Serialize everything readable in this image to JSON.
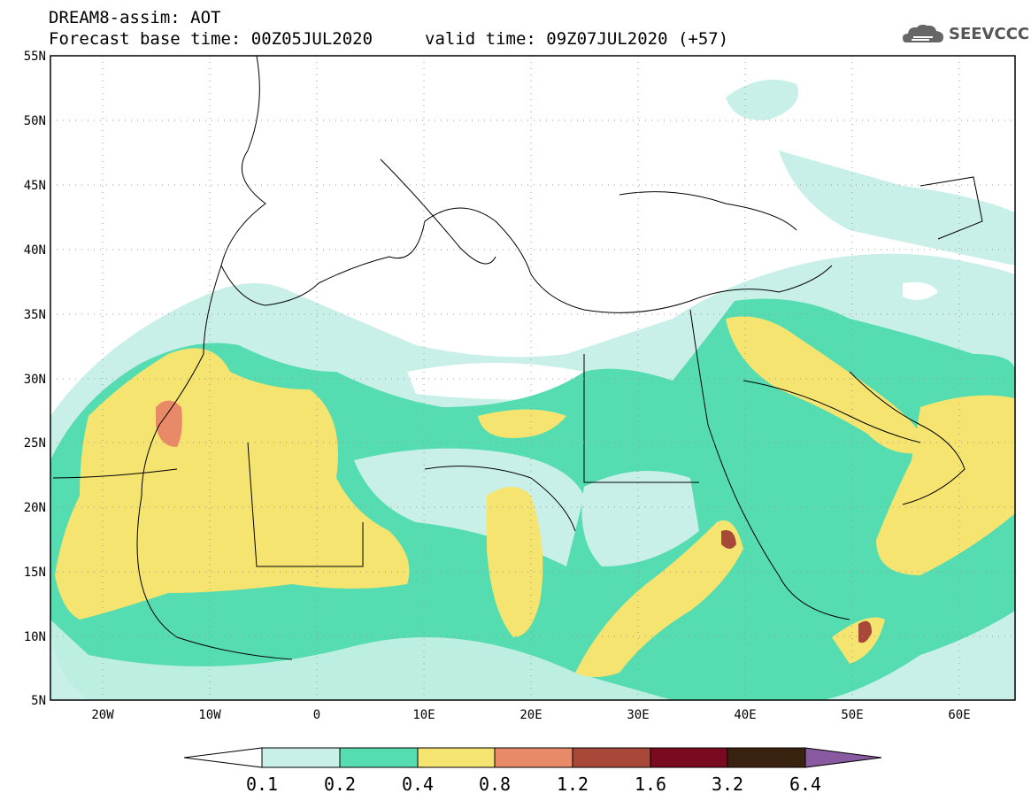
{
  "header": {
    "title": "DREAM8-assim: AOT",
    "base_time": "Forecast base time: 00Z05JUL2020",
    "valid_time": "valid time: 09Z07JUL2020 (+57)"
  },
  "logo": {
    "text": "SEEVCCC",
    "icon": "cloud-icon"
  },
  "map": {
    "lat_labels": [
      "55N",
      "50N",
      "45N",
      "40N",
      "35N",
      "30N",
      "25N",
      "20N",
      "15N",
      "10N",
      "5N"
    ],
    "lon_labels": [
      "20W",
      "10W",
      "0",
      "10E",
      "20E",
      "30E",
      "40E",
      "50E",
      "60E"
    ],
    "lat_range": [
      5,
      55
    ],
    "lon_range": [
      -25,
      65
    ],
    "grid": true
  },
  "colorbar": {
    "levels": [
      "0.1",
      "0.2",
      "0.4",
      "0.8",
      "1.2",
      "1.6",
      "3.2",
      "6.4"
    ],
    "colors": [
      "#ffffff",
      "#c8f0e8",
      "#55dcb0",
      "#f5e470",
      "#e88a68",
      "#a84838",
      "#7a0a20",
      "#3a2210",
      "#8a5aa0"
    ]
  }
}
